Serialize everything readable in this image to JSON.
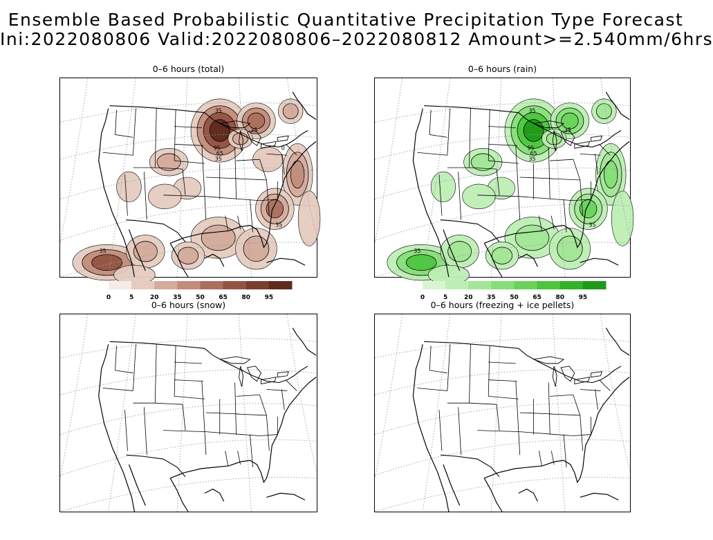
{
  "header": {
    "title_line1": "Ensemble Based Probabilistic Quantitative Precipitation Type Forecast",
    "title_line2": "Ini:2022080806 Valid:2022080806–2022080812 Amount>=2.540mm/6hrs"
  },
  "panels": [
    {
      "id": "total",
      "title": "0–6 hours (total)",
      "contour_labels": [
        "35",
        "35",
        "95",
        "65",
        "35",
        "35",
        "35",
        "0"
      ]
    },
    {
      "id": "rain",
      "title": "0–6 hours (rain)",
      "contour_labels": [
        "35",
        "35",
        "95",
        "65",
        "35",
        "35",
        "35"
      ]
    },
    {
      "id": "snow",
      "title": "0–6 hours (snow)"
    },
    {
      "id": "freezing",
      "title": "0–6 hours (freezing + ice pellets)"
    }
  ],
  "colorbars": [
    {
      "id": "total-colorbar",
      "labels": [
        "0",
        "5",
        "20",
        "35",
        "50",
        "65",
        "80",
        "95"
      ],
      "colors": [
        "#f5ebe7",
        "#e5cbc0",
        "#d4ab9c",
        "#c28d7b",
        "#ac6f5d",
        "#955443",
        "#7a3d2e",
        "#5f2a1f"
      ]
    },
    {
      "id": "rain-colorbar",
      "labels": [
        "0",
        "5",
        "20",
        "35",
        "50",
        "65",
        "80",
        "95"
      ],
      "colors": [
        "#d7f5d2",
        "#bdeeb4",
        "#a2e696",
        "#86de78",
        "#69d45a",
        "#4cc63f",
        "#33b229",
        "#1f9a18"
      ]
    }
  ]
}
